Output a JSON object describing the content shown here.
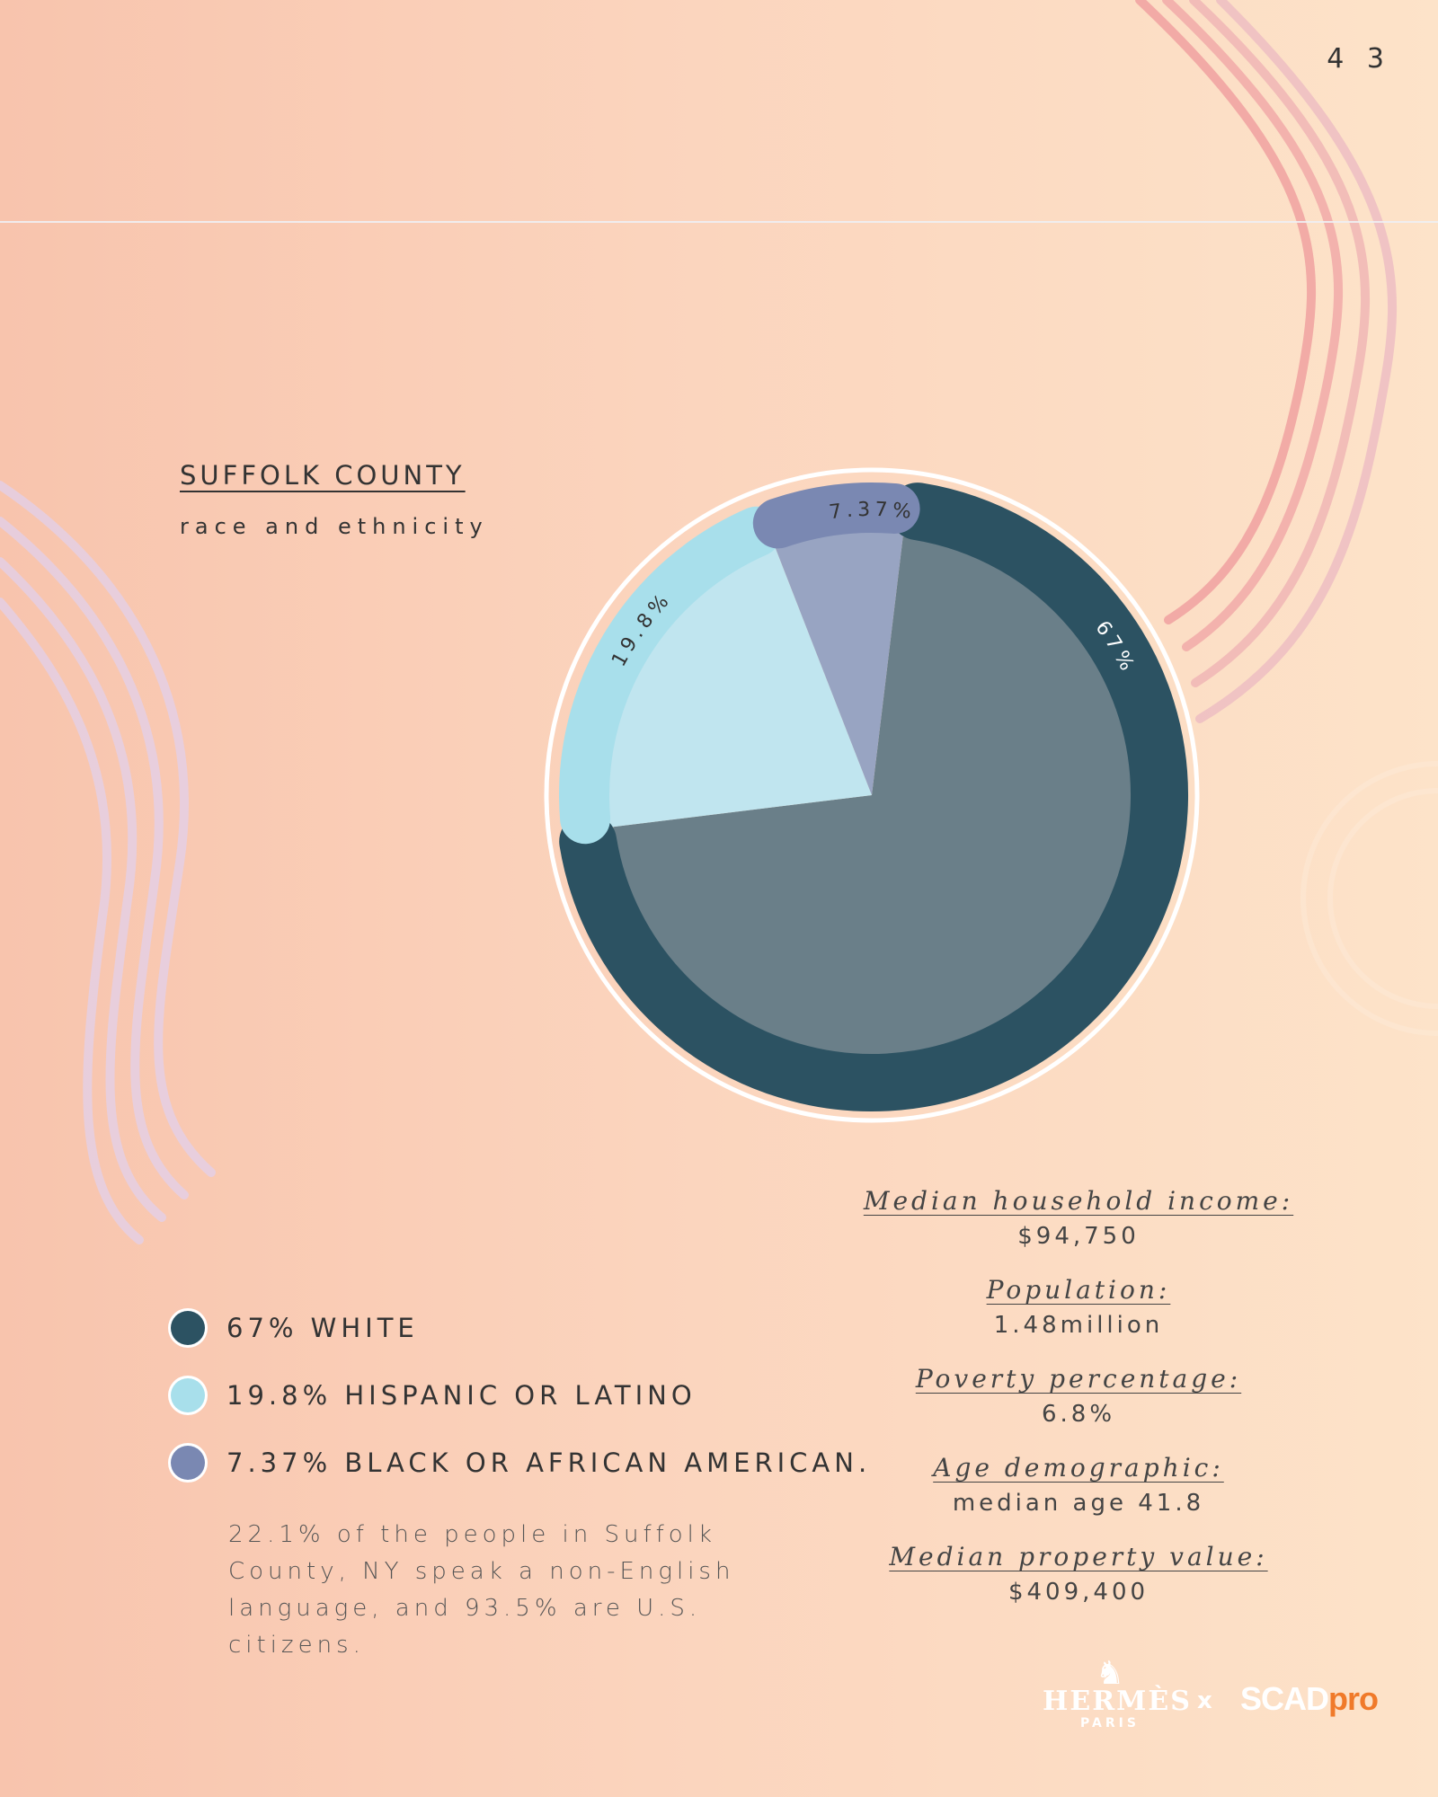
{
  "page_number": "4 3",
  "heading": {
    "title": "SUFFOLK COUNTY",
    "subtitle": "race and ethnicity"
  },
  "chart_data": {
    "type": "pie",
    "title": "SUFFOLK COUNTY",
    "subtitle": "race and ethnicity",
    "slices": [
      {
        "label": "WHITE",
        "value": 67,
        "label_text": "67%",
        "color": "#2c5262",
        "fill": "#6a7f89"
      },
      {
        "label": "HISPANIC OR LATINO",
        "value": 19.8,
        "label_text": "19.8%",
        "color": "#a8dfeb",
        "fill": "#c0e5ef"
      },
      {
        "label": "BLACK OR AFRICAN AMERICAN",
        "value": 7.37,
        "label_text": "7.37%",
        "color": "#7a88b2",
        "fill": "#98a4c2"
      }
    ]
  },
  "legend": [
    {
      "text": "67% WHITE",
      "color": "#2c5262"
    },
    {
      "text": "19.8% HISPANIC OR LATINO",
      "color": "#a8dfeb"
    },
    {
      "text": "7.37% BLACK OR AFRICAN AMERICAN.",
      "color": "#7a88b2"
    }
  ],
  "note": "22.1% of the people in Suffolk County, NY speak a non-English language, and 93.5% are U.S. citizens.",
  "stats": [
    {
      "label": "Median household income:",
      "value": "$94,750"
    },
    {
      "label": "Population:",
      "value": "1.48million"
    },
    {
      "label": "Poverty percentage:",
      "value": "6.8%"
    },
    {
      "label": "Age demographic:",
      "value": "median age 41.8"
    },
    {
      "label": "Median property value:",
      "value": "$409,400"
    }
  ],
  "logos": {
    "hermes_name": "HERMÈS",
    "hermes_sub": "PARIS",
    "times": "x",
    "scad": "SCAD",
    "pro": "pro",
    "hermes_icon": "horse-carriage-icon"
  }
}
